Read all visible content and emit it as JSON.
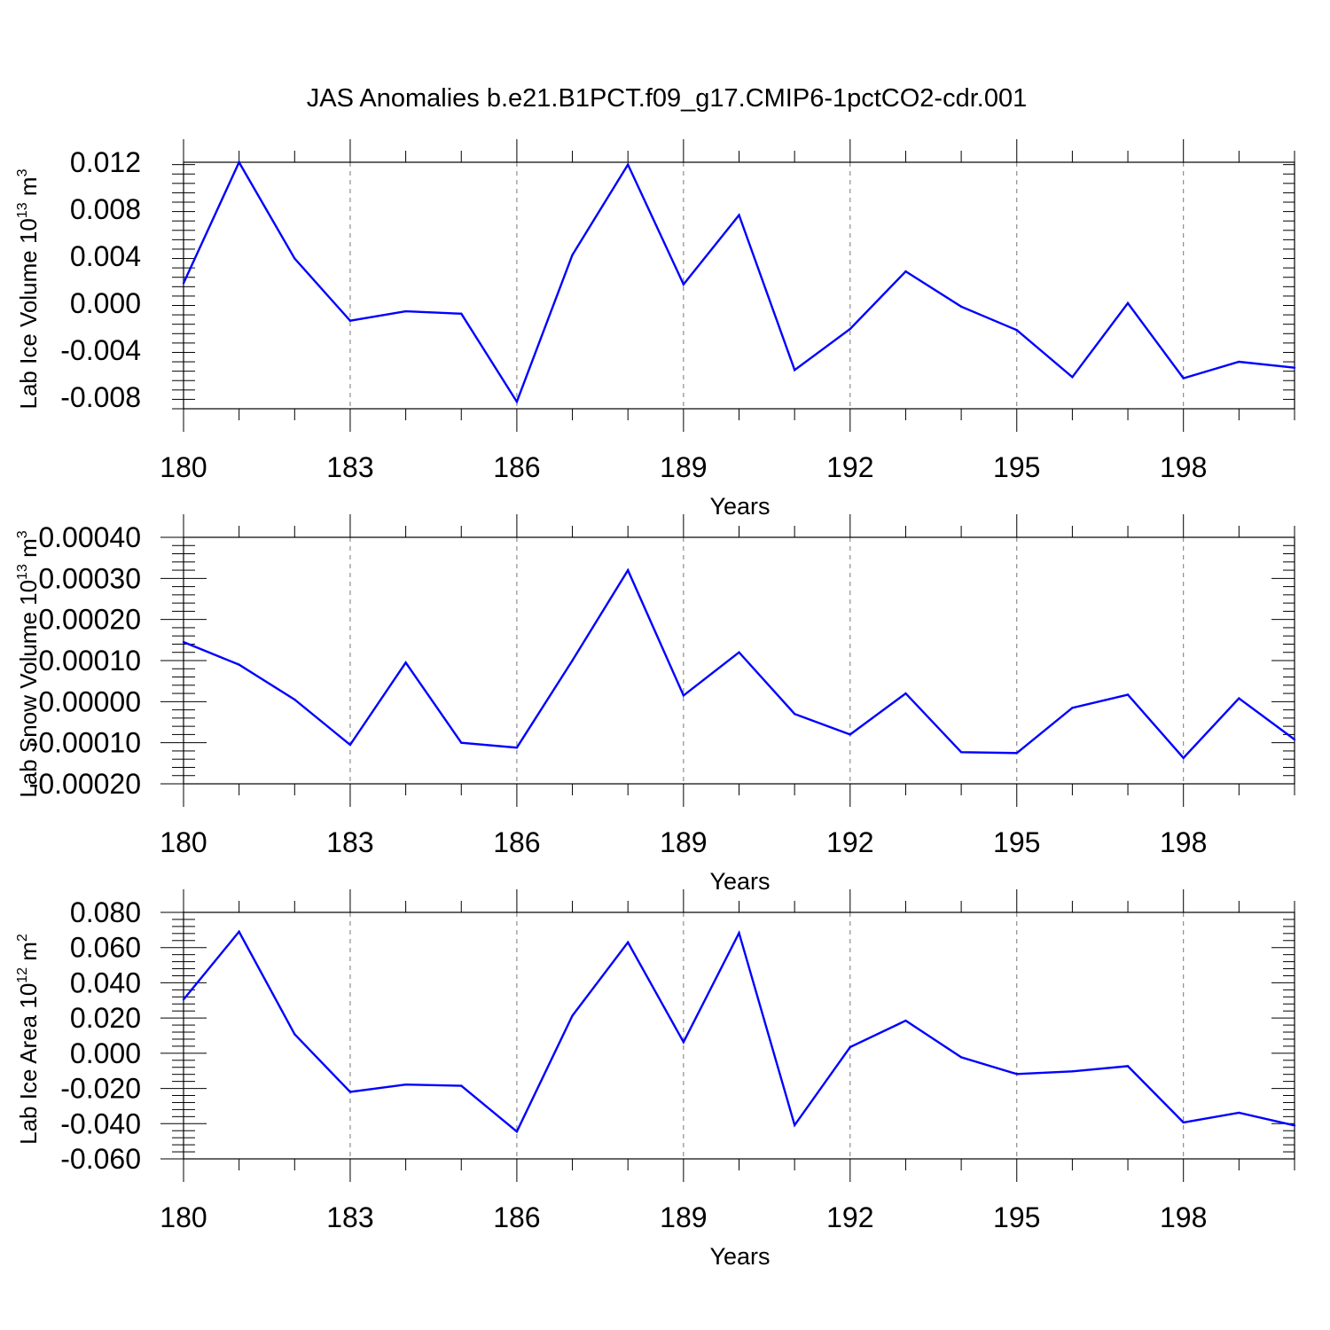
{
  "title": "JAS Anomalies b.e21.B1PCT.f09_g17.CMIP6-1pctCO2-cdr.001",
  "line_color": "#0000ff",
  "chart_data": [
    {
      "type": "line",
      "xlabel": "Years",
      "ylabel_main": "Lab Ice Volume 10",
      "ylabel_exp": "13",
      "ylabel_unit": " m",
      "ylabel_unit_exp": "3",
      "xlim": [
        180,
        200
      ],
      "ylim": [
        -0.009,
        0.012
      ],
      "xticks": [
        180,
        183,
        186,
        189,
        192,
        195,
        198
      ],
      "xtick_labels": [
        "180",
        "183",
        "186",
        "189",
        "192",
        "195",
        "198"
      ],
      "yticks": [
        -0.008,
        -0.004,
        0.0,
        0.004,
        0.008,
        0.012
      ],
      "ytick_labels": [
        "-0.008",
        "-0.004",
        "0.000",
        "0.004",
        "0.008",
        "0.012"
      ],
      "grid": "vertical dashed at major x ticks",
      "x": [
        180,
        181,
        182,
        183,
        184,
        185,
        186,
        187,
        188,
        189,
        190,
        191,
        192,
        193,
        194,
        195,
        196,
        197,
        198,
        199,
        200
      ],
      "y": [
        0.0017,
        0.012,
        0.0038,
        -0.0015,
        -0.0007,
        -0.0009,
        -0.0084,
        0.0041,
        0.0118,
        0.0016,
        0.0075,
        -0.0057,
        -0.0022,
        0.0027,
        -0.0003,
        -0.0023,
        -0.0063,
        0.0,
        -0.0064,
        -0.005,
        -0.0055
      ]
    },
    {
      "type": "line",
      "xlabel": "Years",
      "ylabel_main": "Lab Snow Volume 10",
      "ylabel_exp": "13",
      "ylabel_unit": " m",
      "ylabel_unit_exp": "3",
      "xlim": [
        180,
        200
      ],
      "ylim": [
        -0.0002,
        0.0004
      ],
      "xticks": [
        180,
        183,
        186,
        189,
        192,
        195,
        198
      ],
      "xtick_labels": [
        "180",
        "183",
        "186",
        "189",
        "192",
        "195",
        "198"
      ],
      "yticks": [
        -0.0002,
        -0.0001,
        0.0,
        0.0001,
        0.0002,
        0.0003,
        0.0004
      ],
      "ytick_labels": [
        "-0.00020",
        "-0.00010",
        "0.00000",
        "0.00010",
        "0.00020",
        "0.00030",
        "0.00040"
      ],
      "grid": "vertical dashed at major x ticks",
      "x": [
        180,
        181,
        182,
        183,
        184,
        185,
        186,
        187,
        188,
        189,
        190,
        191,
        192,
        193,
        194,
        195,
        196,
        197,
        198,
        199,
        200
      ],
      "y": [
        0.000145,
        9e-05,
        5e-06,
        -0.000105,
        9.5e-05,
        -0.0001,
        -0.000112,
        0.0001,
        0.00032,
        1.5e-05,
        0.00012,
        -3e-05,
        -8e-05,
        2e-05,
        -0.000123,
        -0.000125,
        -1.5e-05,
        1.7e-05,
        -0.000137,
        8e-06,
        -9.2e-05
      ]
    },
    {
      "type": "line",
      "xlabel": "Years",
      "ylabel_main": "Lab Ice Area 10",
      "ylabel_exp": "12",
      "ylabel_unit": " m",
      "ylabel_unit_exp": "2",
      "xlim": [
        180,
        200
      ],
      "ylim": [
        -0.06,
        0.08
      ],
      "xticks": [
        180,
        183,
        186,
        189,
        192,
        195,
        198
      ],
      "xtick_labels": [
        "180",
        "183",
        "186",
        "189",
        "192",
        "195",
        "198"
      ],
      "yticks": [
        -0.06,
        -0.04,
        -0.02,
        0.0,
        0.02,
        0.04,
        0.06,
        0.08
      ],
      "ytick_labels": [
        "-0.060",
        "-0.040",
        "-0.020",
        "0.000",
        "0.020",
        "0.040",
        "0.060",
        "0.080"
      ],
      "grid": "vertical dashed at major x ticks",
      "x": [
        180,
        181,
        182,
        183,
        184,
        185,
        186,
        187,
        188,
        189,
        190,
        191,
        192,
        193,
        194,
        195,
        196,
        197,
        198,
        199,
        200
      ],
      "y": [
        0.0305,
        0.069,
        0.0108,
        -0.022,
        -0.0178,
        -0.0185,
        -0.0445,
        0.0213,
        0.063,
        0.0063,
        0.0683,
        -0.0408,
        0.0035,
        0.0185,
        -0.0023,
        -0.0118,
        -0.0103,
        -0.0073,
        -0.0393,
        -0.0338,
        -0.041
      ]
    }
  ]
}
